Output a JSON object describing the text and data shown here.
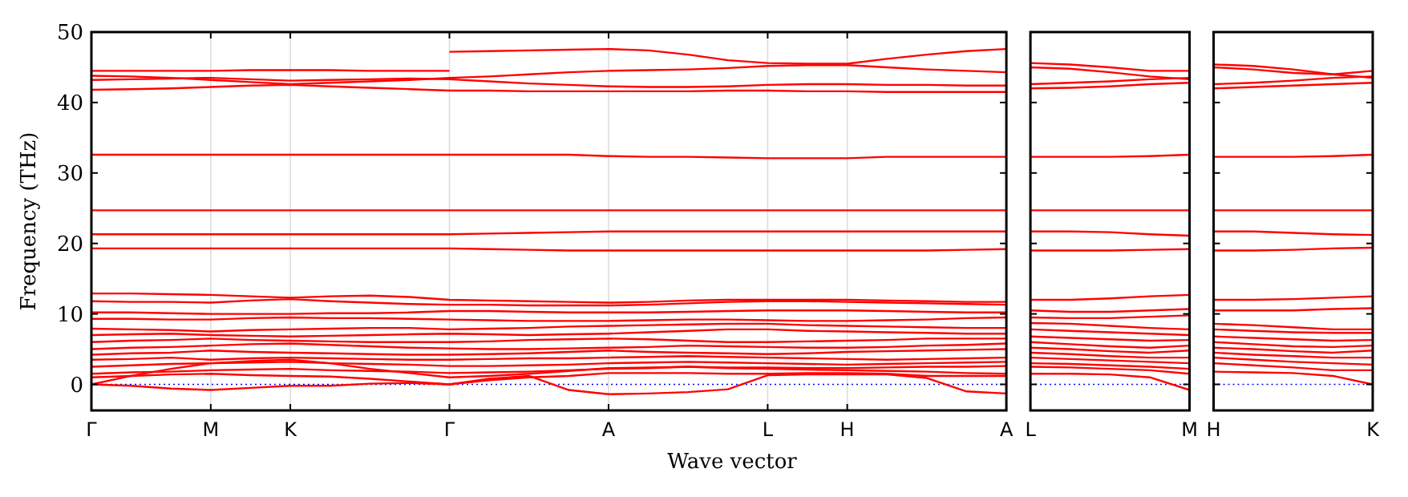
{
  "chart_data": [
    {
      "type": "line",
      "xlabel": "Wave vector",
      "ylabel": "Frequency (THz)",
      "ylim": [
        -3.7,
        50
      ],
      "yticks": [
        0,
        10,
        20,
        30,
        40,
        50
      ],
      "categories": [
        "Γ",
        null,
        null,
        "M",
        null,
        "K",
        null,
        null,
        null,
        "Γ",
        null,
        null,
        null,
        "A",
        null,
        null,
        null,
        "L",
        null,
        "H",
        null,
        null,
        null,
        "A"
      ],
      "grid": "x",
      "line_style": "solid",
      "marker": "none",
      "ref_lines": [
        {
          "axis": "y",
          "value": 0,
          "color": "#0000ff",
          "line_style": "dotted"
        }
      ],
      "series": [
        {
          "color": "#ff0000",
          "values": [
            44.5,
            44.5,
            44.5,
            44.5,
            44.6,
            44.6,
            44.6,
            44.5,
            44.5,
            44.5,
            null,
            null,
            null,
            null,
            null,
            null,
            null,
            null,
            null,
            null,
            null,
            null,
            null,
            null
          ]
        },
        {
          "color": "#ff0000",
          "values": [
            null,
            null,
            null,
            null,
            null,
            null,
            null,
            null,
            null,
            47.2,
            47.3,
            47.4,
            47.5,
            47.6,
            47.4,
            46.8,
            46.0,
            45.6,
            45.5,
            45.5,
            46.2,
            46.8,
            47.3,
            47.6
          ]
        },
        {
          "color": "#ff0000",
          "values": [
            43.8,
            43.7,
            43.5,
            43.2,
            42.9,
            42.6,
            42.8,
            43.0,
            43.2,
            43.5,
            43.7,
            44.0,
            44.3,
            44.5,
            44.6,
            44.7,
            44.9,
            45.2,
            45.3,
            45.3,
            45.0,
            44.7,
            44.5,
            44.3
          ]
        },
        {
          "color": "#ff0000",
          "values": [
            43.2,
            43.3,
            43.4,
            43.5,
            43.3,
            43.1,
            43.2,
            43.3,
            43.4,
            43.3,
            43.0,
            42.7,
            42.5,
            42.3,
            42.2,
            42.2,
            42.3,
            42.5,
            42.6,
            42.6,
            42.5,
            42.5,
            42.4,
            42.4
          ]
        },
        {
          "color": "#ff0000",
          "values": [
            41.8,
            41.9,
            42.0,
            42.2,
            42.4,
            42.5,
            42.3,
            42.1,
            41.9,
            41.7,
            41.7,
            41.6,
            41.6,
            41.6,
            41.6,
            41.6,
            41.7,
            41.7,
            41.6,
            41.6,
            41.5,
            41.5,
            41.5,
            41.5
          ]
        },
        {
          "color": "#ff0000",
          "values": [
            32.6,
            32.6,
            32.6,
            32.6,
            32.6,
            32.6,
            32.6,
            32.6,
            32.6,
            32.6,
            32.6,
            32.6,
            32.6,
            32.4,
            32.3,
            32.3,
            32.2,
            32.1,
            32.1,
            32.1,
            32.3,
            32.3,
            32.3,
            32.3
          ]
        },
        {
          "color": "#ff0000",
          "values": [
            24.7,
            24.7,
            24.7,
            24.7,
            24.7,
            24.7,
            24.7,
            24.7,
            24.7,
            24.7,
            24.7,
            24.7,
            24.7,
            24.7,
            24.7,
            24.7,
            24.7,
            24.7,
            24.7,
            24.7,
            24.7,
            24.7,
            24.7,
            24.7
          ]
        },
        {
          "color": "#ff0000",
          "values": [
            21.3,
            21.3,
            21.3,
            21.3,
            21.3,
            21.3,
            21.3,
            21.3,
            21.3,
            21.3,
            21.4,
            21.5,
            21.6,
            21.7,
            21.7,
            21.7,
            21.7,
            21.7,
            21.7,
            21.7,
            21.7,
            21.7,
            21.7,
            21.7
          ]
        },
        {
          "color": "#ff0000",
          "values": [
            19.3,
            19.3,
            19.3,
            19.3,
            19.3,
            19.3,
            19.3,
            19.3,
            19.3,
            19.3,
            19.2,
            19.1,
            19.0,
            19.0,
            19.0,
            19.0,
            19.0,
            19.0,
            19.0,
            19.0,
            19.0,
            19.0,
            19.1,
            19.2
          ]
        },
        {
          "color": "#ff0000",
          "values": [
            12.9,
            12.9,
            12.8,
            12.7,
            12.5,
            12.3,
            12.5,
            12.6,
            12.4,
            12.0,
            11.9,
            11.8,
            11.7,
            11.6,
            11.7,
            11.9,
            12.0,
            12.0,
            12.0,
            12.0,
            11.9,
            11.8,
            11.7,
            11.7
          ]
        },
        {
          "color": "#ff0000",
          "values": [
            11.8,
            11.7,
            11.7,
            11.6,
            11.9,
            12.1,
            11.8,
            11.6,
            11.4,
            11.3,
            11.3,
            11.2,
            11.2,
            11.2,
            11.3,
            11.5,
            11.7,
            11.8,
            11.8,
            11.7,
            11.6,
            11.5,
            11.4,
            11.3
          ]
        },
        {
          "color": "#ff0000",
          "values": [
            10.2,
            10.2,
            10.1,
            10.0,
            10.0,
            10.0,
            10.1,
            10.1,
            10.2,
            10.4,
            10.4,
            10.3,
            10.2,
            10.2,
            10.2,
            10.3,
            10.4,
            10.5,
            10.5,
            10.5,
            10.4,
            10.3,
            10.2,
            10.2
          ]
        },
        {
          "color": "#ff0000",
          "values": [
            9.3,
            9.3,
            9.2,
            9.2,
            9.4,
            9.5,
            9.4,
            9.4,
            9.3,
            9.2,
            9.1,
            9.0,
            9.0,
            9.0,
            9.1,
            9.2,
            9.2,
            9.1,
            9.0,
            9.0,
            9.1,
            9.2,
            9.4,
            9.5
          ]
        },
        {
          "color": "#ff0000",
          "values": [
            7.9,
            7.8,
            7.7,
            7.5,
            7.7,
            7.8,
            7.9,
            8.0,
            8.0,
            7.8,
            7.9,
            8.0,
            8.2,
            8.3,
            8.4,
            8.5,
            8.6,
            8.6,
            8.4,
            8.3,
            8.2,
            8.1,
            8.0,
            8.0
          ]
        },
        {
          "color": "#ff0000",
          "values": [
            7.0,
            7.1,
            7.2,
            7.0,
            6.9,
            6.8,
            6.9,
            7.0,
            7.1,
            7.2,
            7.1,
            7.0,
            7.1,
            7.2,
            7.4,
            7.6,
            7.8,
            7.8,
            7.6,
            7.5,
            7.4,
            7.3,
            7.2,
            7.2
          ]
        },
        {
          "color": "#ff0000",
          "values": [
            6.0,
            6.2,
            6.3,
            6.5,
            6.3,
            6.2,
            6.1,
            6.0,
            6.0,
            6.0,
            6.1,
            6.3,
            6.4,
            6.5,
            6.4,
            6.2,
            6.0,
            6.0,
            6.1,
            6.2,
            6.3,
            6.5,
            6.5,
            6.5
          ]
        },
        {
          "color": "#ff0000",
          "values": [
            5.0,
            5.2,
            5.3,
            5.5,
            5.7,
            5.8,
            5.6,
            5.4,
            5.2,
            5.1,
            5.0,
            5.0,
            5.1,
            5.2,
            5.3,
            5.5,
            5.4,
            5.3,
            5.2,
            5.2,
            5.3,
            5.5,
            5.6,
            5.8
          ]
        },
        {
          "color": "#ff0000",
          "values": [
            4.2,
            4.4,
            4.5,
            4.8,
            4.6,
            4.5,
            4.4,
            4.3,
            4.2,
            4.2,
            4.3,
            4.4,
            4.6,
            4.8,
            4.6,
            4.5,
            4.4,
            4.3,
            4.4,
            4.6,
            4.7,
            4.8,
            4.9,
            5.0
          ]
        },
        {
          "color": "#ff0000",
          "values": [
            3.5,
            3.6,
            3.8,
            3.5,
            3.7,
            3.8,
            3.7,
            3.6,
            3.5,
            3.5,
            3.6,
            3.7,
            3.7,
            3.8,
            3.9,
            4.0,
            3.9,
            3.8,
            3.7,
            3.6,
            3.5,
            3.6,
            3.7,
            3.8
          ]
        },
        {
          "color": "#ff0000",
          "values": [
            2.5,
            2.7,
            2.9,
            3.0,
            3.1,
            3.2,
            3.0,
            2.9,
            2.8,
            2.6,
            2.6,
            2.7,
            2.8,
            3.0,
            3.1,
            3.2,
            3.1,
            3.0,
            2.9,
            2.8,
            2.9,
            3.0,
            3.1,
            3.2
          ]
        },
        {
          "color": "#ff0000",
          "values": [
            1.5,
            1.7,
            1.8,
            2.0,
            2.1,
            2.2,
            2.0,
            1.9,
            1.8,
            1.6,
            1.7,
            1.8,
            2.0,
            2.2,
            2.3,
            2.5,
            2.4,
            2.4,
            2.3,
            2.3,
            2.4,
            2.5,
            2.5,
            2.6
          ]
        },
        {
          "color": "#ff0000",
          "values": [
            0,
            1.2,
            2.2,
            3.0,
            3.3,
            3.5,
            3.0,
            2.2,
            1.6,
            1.0,
            1.2,
            1.5,
            1.9,
            2.3,
            2.4,
            2.5,
            2.3,
            2.2,
            2.1,
            2.0,
            1.9,
            1.8,
            1.6,
            1.5
          ]
        },
        {
          "color": "#ff0000",
          "values": [
            1.0,
            1.2,
            1.4,
            1.5,
            1.3,
            1.2,
            1.1,
            0.8,
            0.4,
            0,
            0.6,
            1.0,
            1.2,
            1.6,
            1.6,
            1.6,
            1.5,
            1.5,
            1.6,
            1.6,
            1.5,
            1.2,
            1.2,
            1.2
          ]
        },
        {
          "color": "#ff0000",
          "values": [
            0,
            -0.2,
            -0.6,
            -0.8,
            -0.5,
            -0.2,
            -0.2,
            0.1,
            0.2,
            0,
            0.8,
            1.2,
            -0.8,
            -1.4,
            -1.3,
            -1.1,
            -0.7,
            1.3,
            1.4,
            1.4,
            1.4,
            0.9,
            -1.0,
            -1.3
          ]
        }
      ]
    },
    {
      "type": "line",
      "ylim": [
        -3.7,
        50
      ],
      "yticks": [
        0,
        10,
        20,
        30,
        40,
        50
      ],
      "categories": [
        "L",
        null,
        null,
        null,
        "M"
      ],
      "tick_labels": "x",
      "line_style": "solid",
      "marker": "none",
      "ref_lines": [
        {
          "axis": "y",
          "value": 0,
          "color": "#0000ff",
          "line_style": "dotted"
        }
      ],
      "series": [
        {
          "color": "#ff0000",
          "values": [
            45.6,
            45.4,
            45.0,
            44.5,
            44.5
          ]
        },
        {
          "color": "#ff0000",
          "values": [
            45.0,
            44.8,
            44.3,
            43.7,
            43.3
          ]
        },
        {
          "color": "#ff0000",
          "values": [
            42.6,
            42.8,
            43.0,
            43.3,
            43.5
          ]
        },
        {
          "color": "#ff0000",
          "values": [
            42.0,
            42.1,
            42.3,
            42.6,
            42.8
          ]
        },
        {
          "color": "#ff0000",
          "values": [
            32.3,
            32.3,
            32.3,
            32.4,
            32.6
          ]
        },
        {
          "color": "#ff0000",
          "values": [
            24.7,
            24.7,
            24.7,
            24.7,
            24.7
          ]
        },
        {
          "color": "#ff0000",
          "values": [
            21.7,
            21.7,
            21.6,
            21.3,
            21.1
          ]
        },
        {
          "color": "#ff0000",
          "values": [
            19.0,
            19.0,
            19.0,
            19.1,
            19.2
          ]
        },
        {
          "color": "#ff0000",
          "values": [
            12.0,
            12.0,
            12.2,
            12.5,
            12.7
          ]
        },
        {
          "color": "#ff0000",
          "values": [
            10.5,
            10.3,
            10.3,
            10.5,
            10.7
          ]
        },
        {
          "color": "#ff0000",
          "values": [
            9.5,
            9.4,
            9.4,
            9.6,
            9.8
          ]
        },
        {
          "color": "#ff0000",
          "values": [
            8.7,
            8.6,
            8.3,
            8.0,
            7.8
          ]
        },
        {
          "color": "#ff0000",
          "values": [
            7.8,
            7.6,
            7.4,
            7.2,
            7.0
          ]
        },
        {
          "color": "#ff0000",
          "values": [
            6.8,
            6.6,
            6.4,
            6.2,
            6.3
          ]
        },
        {
          "color": "#ff0000",
          "values": [
            6.0,
            5.7,
            5.4,
            5.2,
            5.5
          ]
        },
        {
          "color": "#ff0000",
          "values": [
            5.2,
            5.0,
            4.7,
            4.5,
            4.8
          ]
        },
        {
          "color": "#ff0000",
          "values": [
            4.5,
            4.3,
            4.0,
            3.8,
            3.8
          ]
        },
        {
          "color": "#ff0000",
          "values": [
            3.8,
            3.6,
            3.4,
            3.2,
            3.0
          ]
        },
        {
          "color": "#ff0000",
          "values": [
            3.0,
            2.9,
            2.7,
            2.5,
            2.2
          ]
        },
        {
          "color": "#ff0000",
          "values": [
            2.5,
            2.4,
            2.2,
            2.0,
            1.5
          ]
        },
        {
          "color": "#ff0000",
          "values": [
            1.5,
            1.5,
            1.4,
            1.0,
            -0.8
          ]
        }
      ]
    },
    {
      "type": "line",
      "ylim": [
        -3.7,
        50
      ],
      "yticks": [
        0,
        10,
        20,
        30,
        40,
        50
      ],
      "categories": [
        "H",
        null,
        null,
        null,
        "K"
      ],
      "tick_labels": "x",
      "line_style": "solid",
      "marker": "none",
      "ref_lines": [
        {
          "axis": "y",
          "value": 0,
          "color": "#0000ff",
          "line_style": "dotted"
        }
      ],
      "series": [
        {
          "color": "#ff0000",
          "values": [
            45.4,
            45.2,
            44.7,
            44.0,
            43.5
          ]
        },
        {
          "color": "#ff0000",
          "values": [
            45.0,
            44.7,
            44.2,
            44.0,
            44.5
          ]
        },
        {
          "color": "#ff0000",
          "values": [
            42.6,
            42.8,
            43.1,
            43.5,
            43.7
          ]
        },
        {
          "color": "#ff0000",
          "values": [
            42.0,
            42.2,
            42.4,
            42.6,
            42.8
          ]
        },
        {
          "color": "#ff0000",
          "values": [
            32.3,
            32.3,
            32.3,
            32.4,
            32.6
          ]
        },
        {
          "color": "#ff0000",
          "values": [
            24.7,
            24.7,
            24.7,
            24.7,
            24.7
          ]
        },
        {
          "color": "#ff0000",
          "values": [
            21.7,
            21.7,
            21.5,
            21.3,
            21.2
          ]
        },
        {
          "color": "#ff0000",
          "values": [
            19.0,
            19.0,
            19.1,
            19.3,
            19.4
          ]
        },
        {
          "color": "#ff0000",
          "values": [
            12.0,
            12.0,
            12.1,
            12.3,
            12.5
          ]
        },
        {
          "color": "#ff0000",
          "values": [
            10.5,
            10.5,
            10.5,
            10.7,
            10.8
          ]
        },
        {
          "color": "#ff0000",
          "values": [
            8.6,
            8.4,
            8.1,
            7.8,
            7.8
          ]
        },
        {
          "color": "#ff0000",
          "values": [
            7.8,
            7.6,
            7.4,
            7.3,
            7.3
          ]
        },
        {
          "color": "#ff0000",
          "values": [
            6.8,
            6.6,
            6.4,
            6.2,
            6.3
          ]
        },
        {
          "color": "#ff0000",
          "values": [
            6.0,
            5.7,
            5.4,
            5.3,
            5.5
          ]
        },
        {
          "color": "#ff0000",
          "values": [
            5.2,
            5.0,
            4.7,
            4.5,
            4.8
          ]
        },
        {
          "color": "#ff0000",
          "values": [
            4.5,
            4.2,
            4.0,
            3.8,
            3.8
          ]
        },
        {
          "color": "#ff0000",
          "values": [
            3.8,
            3.5,
            3.2,
            3.0,
            2.8
          ]
        },
        {
          "color": "#ff0000",
          "values": [
            3.0,
            2.7,
            2.4,
            2.0,
            2.0
          ]
        },
        {
          "color": "#ff0000",
          "values": [
            1.8,
            1.7,
            1.6,
            1.2,
            0
          ]
        }
      ]
    }
  ]
}
